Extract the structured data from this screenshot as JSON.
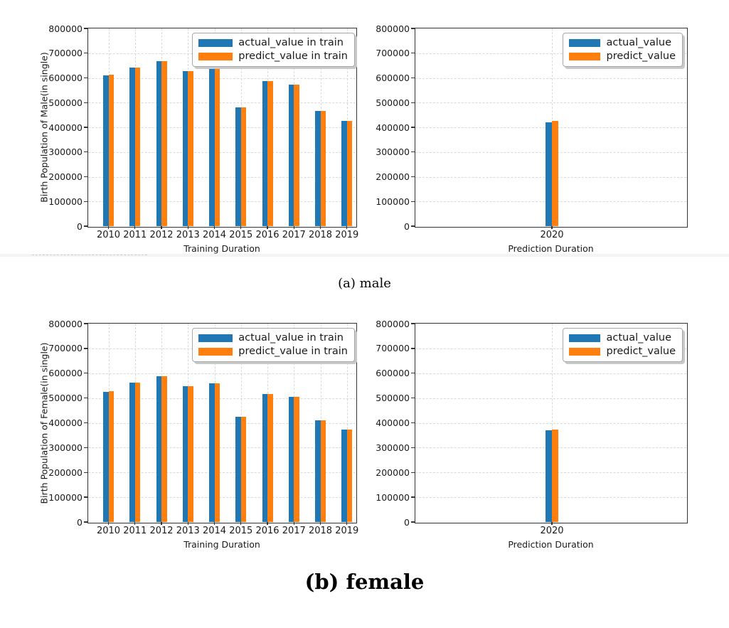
{
  "page": {
    "background": "#ffffff"
  },
  "captions": {
    "a": "(a) male",
    "b": "(b) female"
  },
  "colors": {
    "actual": "#1f77b4",
    "predict": "#ff7f0e",
    "grid": "#d9d9d9",
    "spine": "#333333",
    "text": "#1a1a1a"
  },
  "chart_data": [
    {
      "type": "bar",
      "title": "",
      "xlabel": "Training Duration",
      "ylabel": "Birth Population of Male(in single)",
      "ylim": [
        0,
        800000
      ],
      "ytick_step": 100000,
      "grid": true,
      "legend_position": "upper right",
      "categories": [
        "2010",
        "2011",
        "2012",
        "2013",
        "2014",
        "2015",
        "2016",
        "2017",
        "2018",
        "2019"
      ],
      "series": [
        {
          "name": "actual_value in train",
          "color_key": "actual",
          "values": [
            611000,
            641000,
            668000,
            626000,
            636000,
            481000,
            587000,
            574000,
            466000,
            425000
          ]
        },
        {
          "name": "predict_value in train",
          "color_key": "predict",
          "values": [
            612000,
            642000,
            669000,
            626000,
            637000,
            482000,
            588000,
            574000,
            467000,
            425000
          ]
        }
      ]
    },
    {
      "type": "bar",
      "title": "",
      "xlabel": "Prediction Duration",
      "ylabel": "",
      "ylim": [
        0,
        800000
      ],
      "ytick_step": 100000,
      "grid": true,
      "legend_position": "upper right",
      "categories": [
        "2020"
      ],
      "series": [
        {
          "name": "actual_value",
          "color_key": "actual",
          "values": [
            420000
          ]
        },
        {
          "name": "predict_value",
          "color_key": "predict",
          "values": [
            425000
          ]
        }
      ]
    },
    {
      "type": "bar",
      "title": "",
      "xlabel": "Training Duration",
      "ylabel": "Birth Population of Female(in single)",
      "ylim": [
        0,
        800000
      ],
      "ytick_step": 100000,
      "grid": true,
      "legend_position": "upper right",
      "categories": [
        "2010",
        "2011",
        "2012",
        "2013",
        "2014",
        "2015",
        "2016",
        "2017",
        "2018",
        "2019"
      ],
      "series": [
        {
          "name": "actual_value in train",
          "color_key": "actual",
          "values": [
            526000,
            563000,
            588000,
            547000,
            558000,
            424000,
            516000,
            506000,
            410000,
            372000
          ]
        },
        {
          "name": "predict_value in train",
          "color_key": "predict",
          "values": [
            527000,
            563000,
            588000,
            548000,
            558000,
            424000,
            517000,
            506000,
            411000,
            373000
          ]
        }
      ]
    },
    {
      "type": "bar",
      "title": "",
      "xlabel": "Prediction Duration",
      "ylabel": "",
      "ylim": [
        0,
        800000
      ],
      "ytick_step": 100000,
      "grid": true,
      "legend_position": "upper right",
      "categories": [
        "2020"
      ],
      "series": [
        {
          "name": "actual_value",
          "color_key": "actual",
          "values": [
            370000
          ]
        },
        {
          "name": "predict_value",
          "color_key": "predict",
          "values": [
            373000
          ]
        }
      ]
    }
  ]
}
